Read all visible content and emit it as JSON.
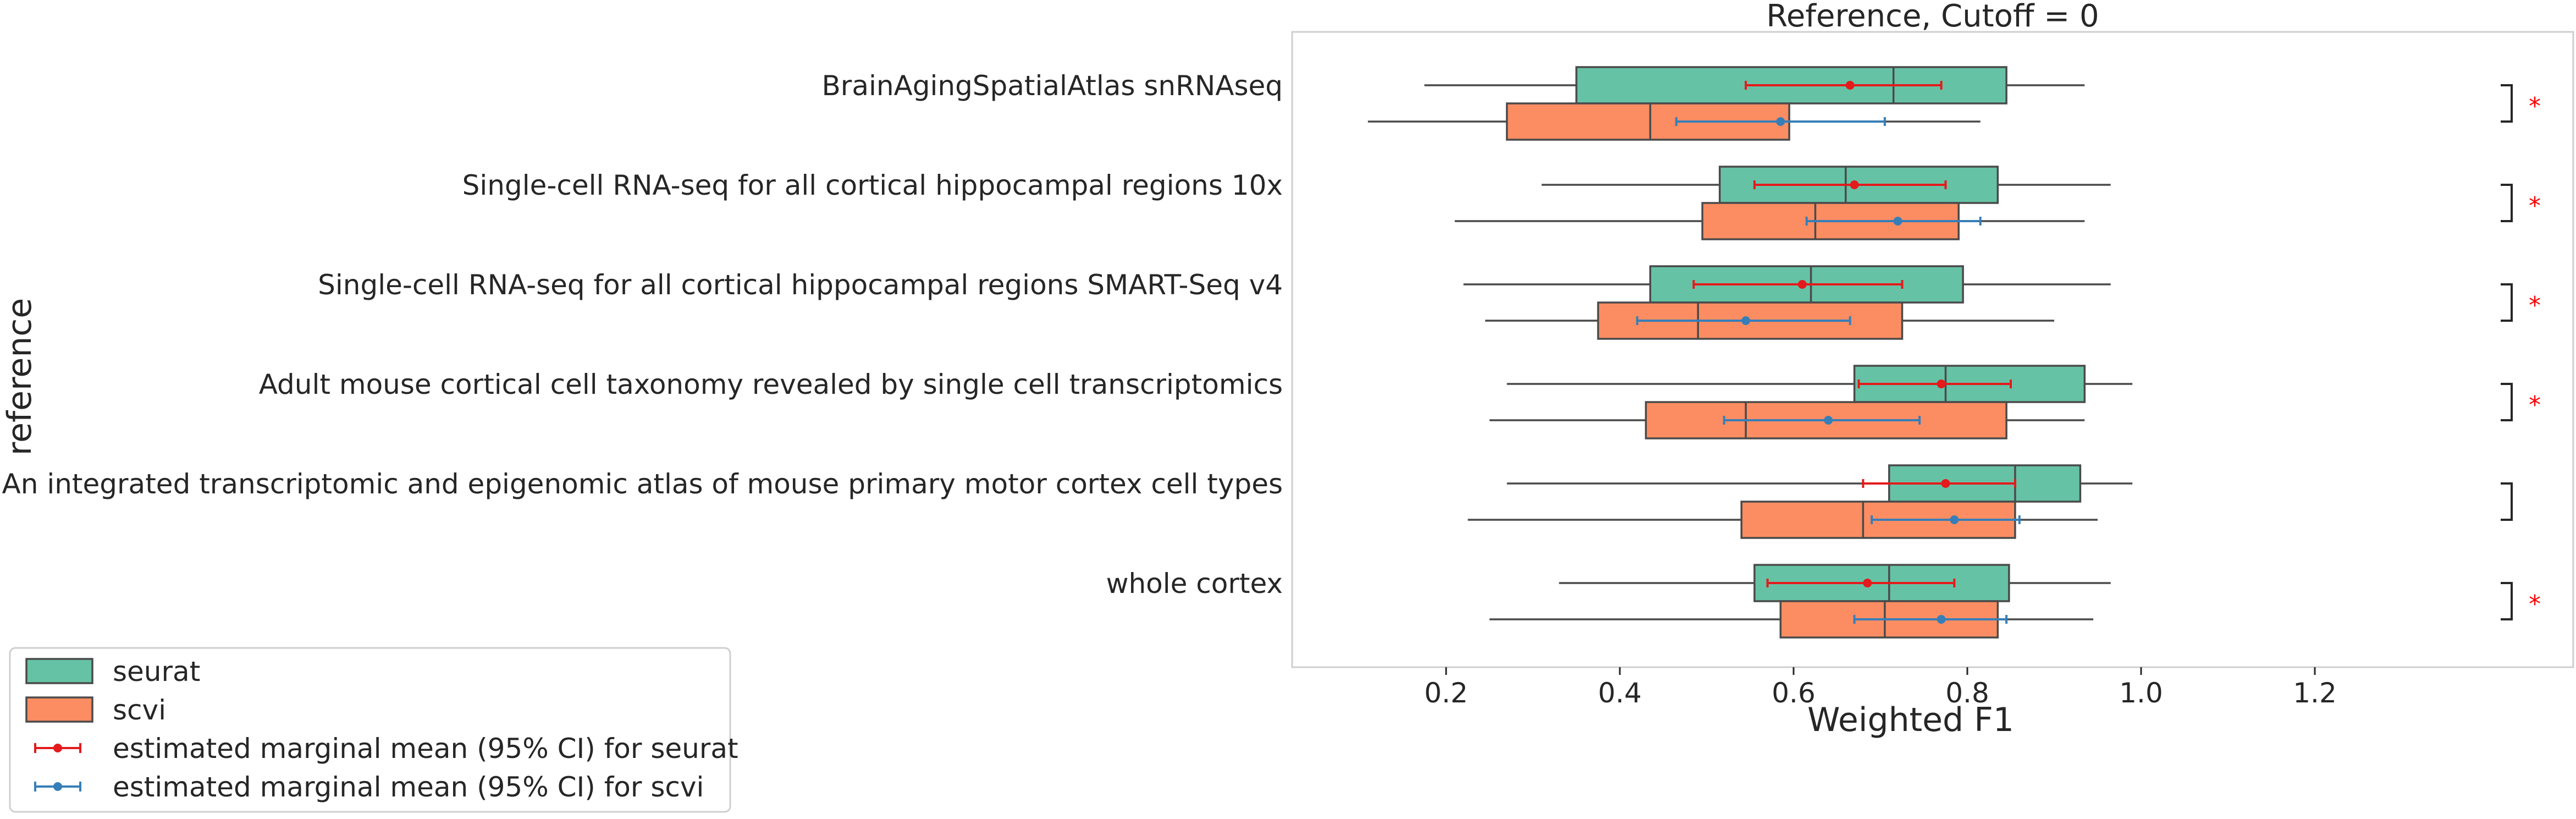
{
  "chart_data": {
    "type": "boxplot",
    "title": "Reference, Cutoff = 0",
    "xlabel": "Weighted F1",
    "ylabel": "reference",
    "xlim": [
      0.05,
      1.27
    ],
    "xticks": [
      0.2,
      0.4,
      0.6,
      0.8,
      1.0,
      1.2
    ],
    "xtick_labels": [
      "0.2",
      "0.4",
      "0.6",
      "0.8",
      "1.0",
      "1.2"
    ],
    "grid": false,
    "legend_position": "bottom-left, outside plot",
    "series": [
      {
        "name": "seurat",
        "color": "#66c2a5"
      },
      {
        "name": "scvi",
        "color": "#fc8d62"
      }
    ],
    "categories": [
      "BrainAgingSpatialAtlas snRNAseq",
      "Single-cell RNA-seq for all cortical  hippocampal regions 10x",
      "Single-cell RNA-seq for all cortical  hippocampal regions SMART-Seq v4",
      "Adult mouse cortical cell taxonomy revealed by single cell transcriptomics",
      "An integrated transcriptomic and epigenomic atlas of mouse primary motor cortex cell types",
      "whole cortex"
    ],
    "boxes": [
      {
        "seurat": {
          "whisker_low": 0.175,
          "q1": 0.35,
          "median": 0.715,
          "q3": 0.845,
          "whisker_high": 0.935
        },
        "scvi": {
          "whisker_low": 0.11,
          "q1": 0.27,
          "median": 0.435,
          "q3": 0.595,
          "whisker_high": 0.815
        }
      },
      {
        "seurat": {
          "whisker_low": 0.31,
          "q1": 0.515,
          "median": 0.66,
          "q3": 0.835,
          "whisker_high": 0.965
        },
        "scvi": {
          "whisker_low": 0.21,
          "q1": 0.495,
          "median": 0.625,
          "q3": 0.79,
          "whisker_high": 0.935
        }
      },
      {
        "seurat": {
          "whisker_low": 0.22,
          "q1": 0.435,
          "median": 0.62,
          "q3": 0.795,
          "whisker_high": 0.965
        },
        "scvi": {
          "whisker_low": 0.245,
          "q1": 0.375,
          "median": 0.49,
          "q3": 0.725,
          "whisker_high": 0.9
        }
      },
      {
        "seurat": {
          "whisker_low": 0.27,
          "q1": 0.67,
          "median": 0.775,
          "q3": 0.935,
          "whisker_high": 0.99
        },
        "scvi": {
          "whisker_low": 0.25,
          "q1": 0.43,
          "median": 0.545,
          "q3": 0.845,
          "whisker_high": 0.935
        }
      },
      {
        "seurat": {
          "whisker_low": 0.27,
          "q1": 0.71,
          "median": 0.855,
          "q3": 0.93,
          "whisker_high": 0.99
        },
        "scvi": {
          "whisker_low": 0.225,
          "q1": 0.54,
          "median": 0.68,
          "q3": 0.855,
          "whisker_high": 0.95
        }
      },
      {
        "seurat": {
          "whisker_low": 0.33,
          "q1": 0.555,
          "median": 0.71,
          "q3": 0.848,
          "whisker_high": 0.965
        },
        "scvi": {
          "whisker_low": 0.25,
          "q1": 0.585,
          "median": 0.705,
          "q3": 0.835,
          "whisker_high": 0.945
        }
      }
    ],
    "marginal_means": [
      {
        "seurat": {
          "mean": 0.665,
          "ci_low": 0.545,
          "ci_high": 0.77
        },
        "scvi": {
          "mean": 0.585,
          "ci_low": 0.465,
          "ci_high": 0.705
        }
      },
      {
        "seurat": {
          "mean": 0.67,
          "ci_low": 0.555,
          "ci_high": 0.775
        },
        "scvi": {
          "mean": 0.72,
          "ci_low": 0.615,
          "ci_high": 0.815
        }
      },
      {
        "seurat": {
          "mean": 0.61,
          "ci_low": 0.485,
          "ci_high": 0.725
        },
        "scvi": {
          "mean": 0.545,
          "ci_low": 0.42,
          "ci_high": 0.665
        }
      },
      {
        "seurat": {
          "mean": 0.77,
          "ci_low": 0.675,
          "ci_high": 0.85
        },
        "scvi": {
          "mean": 0.64,
          "ci_low": 0.52,
          "ci_high": 0.745
        }
      },
      {
        "seurat": {
          "mean": 0.775,
          "ci_low": 0.68,
          "ci_high": 0.855
        },
        "scvi": {
          "mean": 0.785,
          "ci_low": 0.69,
          "ci_high": 0.86
        }
      },
      {
        "seurat": {
          "mean": 0.685,
          "ci_low": 0.57,
          "ci_high": 0.785
        },
        "scvi": {
          "mean": 0.77,
          "ci_low": 0.67,
          "ci_high": 0.845
        }
      }
    ],
    "significance": [
      "*",
      "*",
      "*",
      "*",
      "",
      "*"
    ],
    "legend": [
      {
        "label": "seurat",
        "kind": "patch",
        "color": "#66c2a5"
      },
      {
        "label": "scvi",
        "kind": "patch",
        "color": "#fc8d62"
      },
      {
        "label": "estimated marginal mean (95% CI) for seurat",
        "kind": "errorbar",
        "color": "#e41a1c"
      },
      {
        "label": "estimated marginal mean (95% CI) for scvi",
        "kind": "errorbar",
        "color": "#377eb8"
      }
    ],
    "colors": {
      "seurat_box": "#66c2a5",
      "scvi_box": "#fc8d62",
      "seurat_mean": "#e41a1c",
      "scvi_mean": "#377eb8",
      "box_edge": "#4a4a4a",
      "significance": "#ff0000"
    }
  }
}
